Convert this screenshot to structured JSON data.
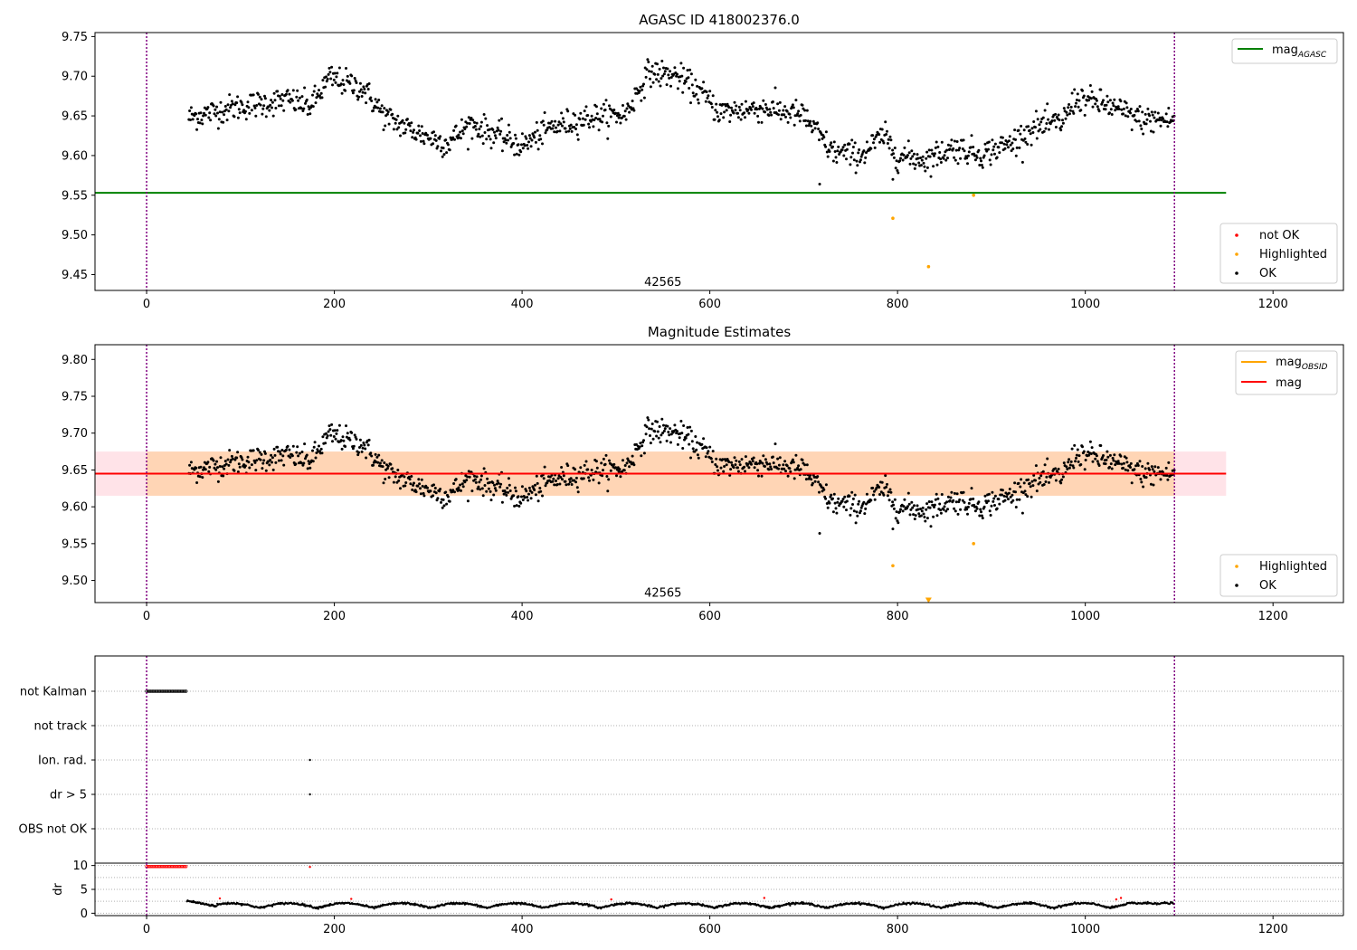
{
  "chart_data": [
    {
      "type": "scatter",
      "title": "AGASC ID 418002376.0",
      "xlim": [
        -55,
        1275
      ],
      "ylim": [
        9.43,
        9.755
      ],
      "xticks": [
        0,
        200,
        400,
        600,
        800,
        1000,
        1200
      ],
      "yticks": [
        "9.45",
        "9.50",
        "9.55",
        "9.60",
        "9.65",
        "9.70",
        "9.75"
      ],
      "vlines": [
        0,
        1095
      ],
      "annotation": "42565",
      "annotation_x": 550,
      "annotation_y": 9.44,
      "hline": {
        "y": 9.553,
        "x0": -55,
        "x1": 1150,
        "color": "#008000"
      },
      "legend_top": [
        {
          "label": "mag",
          "sub": "AGASC",
          "color": "#008000"
        }
      ],
      "legend_bottom": [
        {
          "label": "not OK",
          "color": "#ff0000"
        },
        {
          "label": "Highlighted",
          "color": "#ffa500"
        },
        {
          "label": "OK",
          "color": "#000000"
        }
      ],
      "highlighted_points": [
        [
          795,
          9.521
        ],
        [
          833,
          9.46
        ],
        [
          881,
          9.55
        ]
      ],
      "outlier_points": [
        [
          717,
          9.564
        ],
        [
          795,
          9.57
        ]
      ]
    },
    {
      "type": "scatter",
      "title": "Magnitude Estimates",
      "xlim": [
        -55,
        1275
      ],
      "ylim": [
        9.47,
        9.82
      ],
      "xticks": [
        0,
        200,
        400,
        600,
        800,
        1000,
        1200
      ],
      "yticks": [
        "9.50",
        "9.55",
        "9.60",
        "9.65",
        "9.70",
        "9.75",
        "9.80"
      ],
      "vlines": [
        0,
        1095
      ],
      "annotation": "42565",
      "annotation_x": 550,
      "annotation_y": 9.483,
      "band": {
        "y0": 9.615,
        "y1": 9.675,
        "x0": -55,
        "x1": 1150
      },
      "hline": {
        "y": 9.645,
        "x0": -55,
        "x1": 1150,
        "color": "#ff0000"
      },
      "legend_top": [
        {
          "label": "mag",
          "sub": "OBSID",
          "color": "#ffa500"
        },
        {
          "label": "mag",
          "sub": "",
          "color": "#ff0000"
        }
      ],
      "legend_bottom": [
        {
          "label": "Highlighted",
          "color": "#ffa500"
        },
        {
          "label": "OK",
          "color": "#000000"
        }
      ],
      "highlighted_points": [
        [
          795,
          9.52
        ],
        [
          881,
          9.55
        ]
      ],
      "outlier_points": [
        [
          717,
          9.564
        ],
        [
          795,
          9.57
        ]
      ],
      "triangle_marker": [
        833,
        9.473
      ]
    },
    {
      "type": "scatter",
      "categories": [
        "not Kalman",
        "not track",
        "Ion. rad.",
        "dr > 5",
        "OBS not OK"
      ],
      "xlim": [
        -55,
        1275
      ],
      "vlines": [
        0,
        1095
      ],
      "flag_points": [
        {
          "row": 0,
          "x0": 0,
          "x1": 43,
          "step": 1.5
        },
        {
          "row": 2,
          "x": 174
        },
        {
          "row": 3,
          "x": 174
        }
      ]
    },
    {
      "type": "scatter",
      "ylabel": "dr",
      "xlim": [
        -55,
        1275
      ],
      "ylim": [
        -0.5,
        10.5
      ],
      "xticks": [
        0,
        200,
        400,
        600,
        800,
        1000,
        1200
      ],
      "yticks": [
        "0",
        "5",
        "10"
      ],
      "vlines": [
        0,
        1095
      ],
      "red_band": {
        "x0": 0,
        "x1": 43,
        "y": 9.8
      },
      "red_points": [
        [
          174,
          9.7
        ],
        [
          78,
          3.1
        ],
        [
          218,
          3.0
        ],
        [
          495,
          2.9
        ],
        [
          658,
          3.2
        ],
        [
          1033,
          2.9
        ],
        [
          1038,
          3.2
        ]
      ]
    }
  ]
}
